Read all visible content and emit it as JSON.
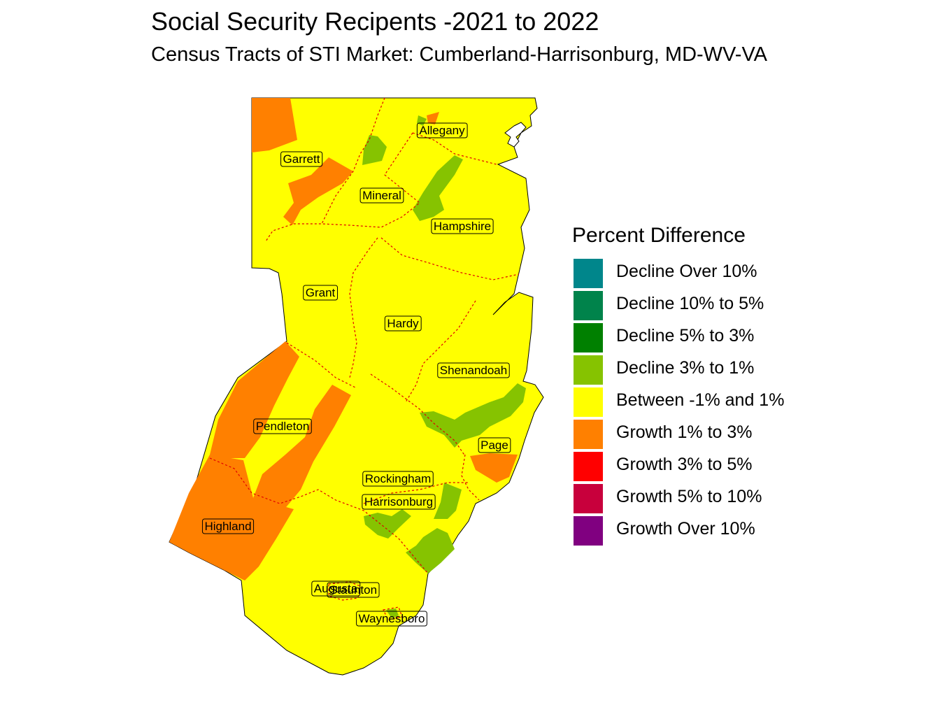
{
  "title": "Social Security Recipents -2021 to 2022",
  "subtitle": "Census Tracts of STI Market: Cumberland-Harrisonburg, MD-WV-VA",
  "legend": {
    "title": "Percent Difference",
    "items": [
      {
        "label": "Decline Over 10%",
        "color": "#00868B"
      },
      {
        "label": "Decline 10% to 5%",
        "color": "#00834B"
      },
      {
        "label": "Decline 5% to 3%",
        "color": "#008000"
      },
      {
        "label": "Decline 3% to 1%",
        "color": "#86C300"
      },
      {
        "label": "Between -1% and 1%",
        "color": "#FFFF00"
      },
      {
        "label": "Growth 1% to 3%",
        "color": "#FF8000"
      },
      {
        "label": "Growth 3% to 5%",
        "color": "#FF0000"
      },
      {
        "label": "Growth 5% to 10%",
        "color": "#C8003C"
      },
      {
        "label": "Growth Over 10%",
        "color": "#800080"
      }
    ]
  },
  "counties": [
    "Allegany",
    "Garrett",
    "Mineral",
    "Hampshire",
    "Grant",
    "Hardy",
    "Shenandoah",
    "Pendleton",
    "Page",
    "Rockingham",
    "Harrisonburg",
    "Highland",
    "Augusta",
    "Staunton",
    "Waynesboro"
  ]
}
